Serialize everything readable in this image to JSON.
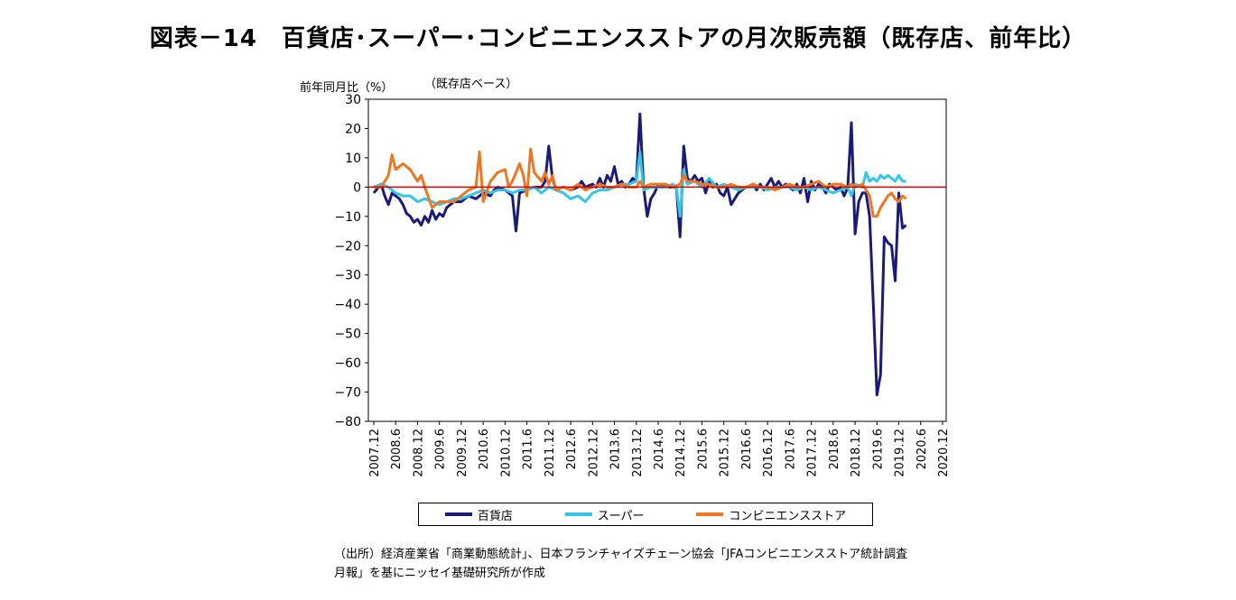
{
  "title": "図表－14　百貨店･スーパー･コンビニエンスストアの月次販売額（既存店、前年比）",
  "source_lines": [
    "（出所）経済産業省「商業動態統計」、日本フランチャイズチェーン協会「JFAコンビニエンスストア統計調査",
    "月報」を基にニッセイ基礎研究所が作成"
  ],
  "chart_data": {
    "type": "line",
    "ylabel": "前年同月比（%）",
    "note": "（既存店ベース）",
    "ylim": [
      -80,
      30
    ],
    "yticks": [
      30,
      20,
      10,
      0,
      -10,
      -20,
      -30,
      -40,
      -50,
      -60,
      -70,
      -80
    ],
    "ytick_labels": [
      "30",
      "20",
      "10",
      "0",
      "−10",
      "−20",
      "−30",
      "−40",
      "−50",
      "−60",
      "−70",
      "−80"
    ],
    "xticks": [
      "2007.12",
      "2008.6",
      "2008.12",
      "2009.6",
      "2009.12",
      "2010.6",
      "2010.12",
      "2011.6",
      "2011.12",
      "2012.6",
      "2012.12",
      "2013.6",
      "2013.12",
      "2014.6",
      "2014.12",
      "2015.6",
      "2015.12",
      "2016.6",
      "2016.12",
      "2017.6",
      "2017.12",
      "2018.6",
      "2018.12",
      "2019.6",
      "2019.12",
      "2020.6",
      "2020.12"
    ],
    "reference_line": 0,
    "reference_color": "#cc0000",
    "x_note": "points are (months since 2007.12, value %)",
    "series": [
      {
        "name": "百貨店",
        "color": "#1a1a7a",
        "points": [
          [
            0,
            -2
          ],
          [
            2,
            1
          ],
          [
            3,
            -3
          ],
          [
            4,
            -6
          ],
          [
            5,
            -2
          ],
          [
            7,
            -4
          ],
          [
            8,
            -6
          ],
          [
            9,
            -9
          ],
          [
            10,
            -10
          ],
          [
            11,
            -12
          ],
          [
            12,
            -11
          ],
          [
            13,
            -13
          ],
          [
            14,
            -10
          ],
          [
            15,
            -12
          ],
          [
            16,
            -8
          ],
          [
            17,
            -11
          ],
          [
            18,
            -9
          ],
          [
            19,
            -10
          ],
          [
            20,
            -7
          ],
          [
            21,
            -6
          ],
          [
            22,
            -5
          ],
          [
            24,
            -5
          ],
          [
            26,
            -3
          ],
          [
            28,
            -4
          ],
          [
            30,
            -2
          ],
          [
            32,
            -3
          ],
          [
            33,
            -1
          ],
          [
            34,
            0
          ],
          [
            36,
            -1
          ],
          [
            38,
            -3
          ],
          [
            39,
            -15
          ],
          [
            40,
            -2
          ],
          [
            42,
            -1
          ],
          [
            44,
            0
          ],
          [
            46,
            0
          ],
          [
            47,
            2
          ],
          [
            48,
            14
          ],
          [
            49,
            3
          ],
          [
            50,
            -1
          ],
          [
            52,
            0
          ],
          [
            54,
            -1
          ],
          [
            56,
            0
          ],
          [
            57,
            2
          ],
          [
            58,
            0
          ],
          [
            60,
            1
          ],
          [
            61,
            0
          ],
          [
            62,
            3
          ],
          [
            63,
            0
          ],
          [
            64,
            4
          ],
          [
            65,
            2
          ],
          [
            66,
            7
          ],
          [
            67,
            1
          ],
          [
            68,
            2
          ],
          [
            69,
            0
          ],
          [
            70,
            1
          ],
          [
            71,
            3
          ],
          [
            72,
            2
          ],
          [
            73,
            25
          ],
          [
            74,
            0
          ],
          [
            75,
            -10
          ],
          [
            76,
            -4
          ],
          [
            77,
            -2
          ],
          [
            78,
            1
          ],
          [
            79,
            0
          ],
          [
            80,
            1
          ],
          [
            81,
            0
          ],
          [
            82,
            0
          ],
          [
            83,
            0
          ],
          [
            84,
            -17
          ],
          [
            85,
            14
          ],
          [
            86,
            3
          ],
          [
            87,
            2
          ],
          [
            88,
            4
          ],
          [
            89,
            2
          ],
          [
            90,
            3
          ],
          [
            91,
            -2
          ],
          [
            92,
            2
          ],
          [
            93,
            0
          ],
          [
            94,
            1
          ],
          [
            95,
            -2
          ],
          [
            96,
            -3
          ],
          [
            97,
            0
          ],
          [
            98,
            -6
          ],
          [
            99,
            -4
          ],
          [
            100,
            -2
          ],
          [
            101,
            -1
          ],
          [
            102,
            0
          ],
          [
            103,
            0
          ],
          [
            104,
            1
          ],
          [
            105,
            -1
          ],
          [
            106,
            1
          ],
          [
            107,
            -1
          ],
          [
            108,
            1
          ],
          [
            109,
            3
          ],
          [
            110,
            0
          ],
          [
            111,
            2
          ],
          [
            112,
            0
          ],
          [
            113,
            1
          ],
          [
            114,
            0
          ],
          [
            115,
            -1
          ],
          [
            116,
            1
          ],
          [
            117,
            -2
          ],
          [
            118,
            3
          ],
          [
            119,
            -5
          ],
          [
            120,
            2
          ],
          [
            121,
            -1
          ],
          [
            122,
            1
          ],
          [
            123,
            0
          ],
          [
            124,
            -2
          ],
          [
            125,
            1
          ],
          [
            126,
            0
          ],
          [
            127,
            -1
          ],
          [
            128,
            0
          ],
          [
            129,
            -3
          ],
          [
            130,
            0
          ],
          [
            131,
            22
          ],
          [
            132,
            -16
          ],
          [
            133,
            -5
          ],
          [
            134,
            -2
          ],
          [
            135,
            -2
          ],
          [
            136,
            -10
          ],
          [
            137,
            -40
          ],
          [
            138,
            -71
          ],
          [
            139,
            -64
          ],
          [
            140,
            -17
          ],
          [
            141,
            -19
          ],
          [
            142,
            -20
          ],
          [
            143,
            -32
          ],
          [
            144,
            -2
          ],
          [
            145,
            -14
          ],
          [
            146,
            -13
          ]
        ]
      },
      {
        "name": "スーパー",
        "color": "#33c6e8",
        "points": [
          [
            0,
            0
          ],
          [
            2,
            1
          ],
          [
            4,
            0
          ],
          [
            6,
            -2
          ],
          [
            8,
            -3
          ],
          [
            10,
            -3
          ],
          [
            12,
            -5
          ],
          [
            14,
            -4
          ],
          [
            16,
            -5
          ],
          [
            18,
            -6
          ],
          [
            20,
            -5
          ],
          [
            22,
            -4
          ],
          [
            24,
            -4
          ],
          [
            26,
            -3
          ],
          [
            28,
            -2
          ],
          [
            30,
            -1
          ],
          [
            32,
            -2
          ],
          [
            34,
            -1
          ],
          [
            36,
            -1
          ],
          [
            38,
            -2
          ],
          [
            40,
            -1
          ],
          [
            42,
            -1
          ],
          [
            44,
            0
          ],
          [
            46,
            -2
          ],
          [
            48,
            0
          ],
          [
            50,
            -1
          ],
          [
            52,
            -2
          ],
          [
            54,
            -4
          ],
          [
            56,
            -3
          ],
          [
            58,
            -5
          ],
          [
            60,
            -2
          ],
          [
            62,
            -1
          ],
          [
            64,
            -1
          ],
          [
            66,
            0
          ],
          [
            68,
            1
          ],
          [
            70,
            1
          ],
          [
            72,
            2
          ],
          [
            73,
            12
          ],
          [
            74,
            -1
          ],
          [
            76,
            0
          ],
          [
            78,
            0
          ],
          [
            80,
            0
          ],
          [
            82,
            1
          ],
          [
            83,
            0
          ],
          [
            84,
            -10
          ],
          [
            85,
            6
          ],
          [
            86,
            1
          ],
          [
            88,
            2
          ],
          [
            90,
            0
          ],
          [
            92,
            3
          ],
          [
            94,
            0
          ],
          [
            96,
            1
          ],
          [
            98,
            0
          ],
          [
            100,
            -1
          ],
          [
            102,
            0
          ],
          [
            104,
            0
          ],
          [
            106,
            0
          ],
          [
            108,
            -1
          ],
          [
            110,
            0
          ],
          [
            112,
            0
          ],
          [
            114,
            0
          ],
          [
            116,
            -1
          ],
          [
            118,
            0
          ],
          [
            120,
            -1
          ],
          [
            122,
            0
          ],
          [
            124,
            -1
          ],
          [
            126,
            -2
          ],
          [
            128,
            -1
          ],
          [
            130,
            0
          ],
          [
            131,
            -3
          ],
          [
            132,
            1
          ],
          [
            134,
            0
          ],
          [
            135,
            5
          ],
          [
            136,
            2
          ],
          [
            137,
            3
          ],
          [
            138,
            2
          ],
          [
            139,
            4
          ],
          [
            140,
            3
          ],
          [
            141,
            4
          ],
          [
            142,
            3
          ],
          [
            143,
            2
          ],
          [
            144,
            4
          ],
          [
            145,
            2
          ],
          [
            146,
            2
          ]
        ]
      },
      {
        "name": "コンビニエンスストア",
        "color": "#ee7722",
        "points": [
          [
            0,
            0
          ],
          [
            2,
            0
          ],
          [
            4,
            4
          ],
          [
            5,
            11
          ],
          [
            6,
            6
          ],
          [
            8,
            8
          ],
          [
            10,
            6
          ],
          [
            12,
            2
          ],
          [
            13,
            4
          ],
          [
            14,
            0
          ],
          [
            16,
            -7
          ],
          [
            18,
            -5
          ],
          [
            20,
            -5
          ],
          [
            22,
            -5
          ],
          [
            24,
            -3
          ],
          [
            26,
            -1
          ],
          [
            28,
            0
          ],
          [
            29,
            12
          ],
          [
            30,
            -5
          ],
          [
            32,
            2
          ],
          [
            34,
            5
          ],
          [
            36,
            6
          ],
          [
            37,
            0
          ],
          [
            38,
            2
          ],
          [
            40,
            8
          ],
          [
            41,
            4
          ],
          [
            42,
            -3
          ],
          [
            43,
            13
          ],
          [
            44,
            5
          ],
          [
            46,
            2
          ],
          [
            47,
            5
          ],
          [
            48,
            1
          ],
          [
            49,
            4
          ],
          [
            50,
            -1
          ],
          [
            52,
            0
          ],
          [
            54,
            -1
          ],
          [
            56,
            1
          ],
          [
            58,
            -1
          ],
          [
            60,
            0
          ],
          [
            62,
            1
          ],
          [
            64,
            0
          ],
          [
            66,
            0
          ],
          [
            68,
            1
          ],
          [
            70,
            0
          ],
          [
            72,
            0
          ],
          [
            73,
            2
          ],
          [
            74,
            0
          ],
          [
            76,
            1
          ],
          [
            78,
            1
          ],
          [
            80,
            1
          ],
          [
            82,
            0
          ],
          [
            84,
            1
          ],
          [
            85,
            4
          ],
          [
            86,
            2
          ],
          [
            88,
            2
          ],
          [
            90,
            1
          ],
          [
            92,
            1
          ],
          [
            94,
            0
          ],
          [
            96,
            0
          ],
          [
            98,
            1
          ],
          [
            100,
            0
          ],
          [
            102,
            0
          ],
          [
            104,
            1
          ],
          [
            106,
            0
          ],
          [
            108,
            0
          ],
          [
            110,
            -1
          ],
          [
            112,
            0
          ],
          [
            114,
            1
          ],
          [
            116,
            0
          ],
          [
            118,
            0
          ],
          [
            120,
            1
          ],
          [
            122,
            2
          ],
          [
            124,
            0
          ],
          [
            126,
            1
          ],
          [
            128,
            1
          ],
          [
            130,
            0
          ],
          [
            131,
            1
          ],
          [
            132,
            0
          ],
          [
            134,
            1
          ],
          [
            135,
            -1
          ],
          [
            136,
            -3
          ],
          [
            137,
            -10
          ],
          [
            138,
            -10
          ],
          [
            139,
            -7
          ],
          [
            140,
            -5
          ],
          [
            141,
            -3
          ],
          [
            142,
            -2
          ],
          [
            143,
            -4
          ],
          [
            144,
            -5
          ],
          [
            145,
            -3
          ],
          [
            146,
            -4
          ]
        ]
      }
    ]
  }
}
